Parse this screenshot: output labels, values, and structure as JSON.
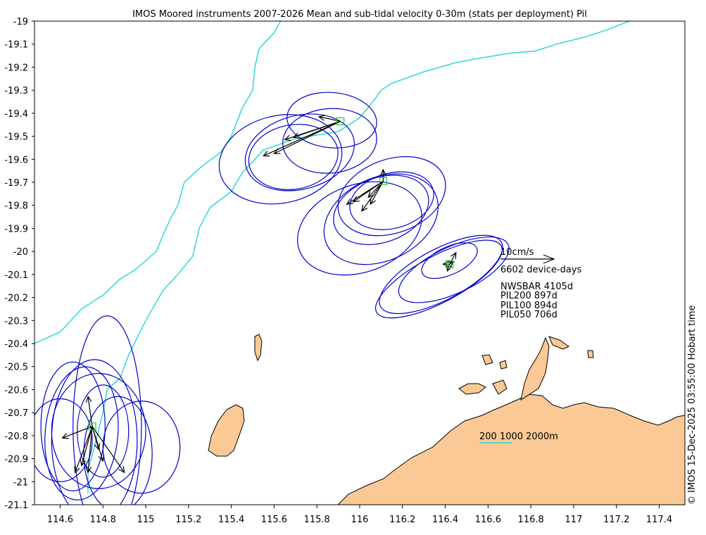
{
  "title": "IMOS Moored instruments 2007-2026 Mean and sub-tidal velocity 0-30m (stats per deployment) Pil",
  "copyright": "© IMOS 15-Dec-2025 03:55:00 Hobart time",
  "colors": {
    "ellipse": "#0000cc",
    "arrow": "#000000",
    "land": "#fbc995",
    "isobath": "#30d8d8",
    "site": "#22cc22"
  },
  "axes": {
    "x_ticks": [
      "114.6",
      "114.8",
      "115",
      "115.2",
      "115.4",
      "115.6",
      "115.8",
      "116",
      "116.2",
      "116.4",
      "116.6",
      "116.8",
      "117",
      "117.2",
      "117.4"
    ],
    "y_ticks": [
      "-19",
      "-19.1",
      "-19.2",
      "-19.3",
      "-19.4",
      "-19.5",
      "-19.6",
      "-19.7",
      "-19.8",
      "-19.9",
      "-20",
      "-20.1",
      "-20.2",
      "-20.3",
      "-20.4",
      "-20.5",
      "-20.6",
      "-20.7",
      "-20.8",
      "-20.9",
      "-21",
      "-21.1"
    ],
    "xlim": [
      114.48,
      117.52
    ],
    "ylim": [
      -21.1,
      -19.0
    ]
  },
  "legend": {
    "scale_label": "10cm/s",
    "device_days": "6602 device-days",
    "sites": [
      "NWSBAR 4105d",
      "PIL200 897d",
      "PIL100 894d",
      "PIL050 706d"
    ]
  },
  "isobath_label": "200 1000 2000m",
  "map_data": {
    "sites": [
      {
        "name": "PIL200",
        "lon": 115.91,
        "lat": -19.435
      },
      {
        "name": "PIL100",
        "lon": 116.11,
        "lat": -19.695
      },
      {
        "name": "PIL050",
        "lon": 116.42,
        "lat": -20.055
      },
      {
        "name": "NWSBAR",
        "lon": 114.75,
        "lat": -20.76
      }
    ],
    "ellipses": [
      {
        "lon": 115.87,
        "lat": -19.43,
        "a": 0.21,
        "b": 0.12,
        "ang": 5
      },
      {
        "lon": 115.72,
        "lat": -19.57,
        "a": 0.26,
        "b": 0.16,
        "ang": -15
      },
      {
        "lon": 115.69,
        "lat": -19.59,
        "a": 0.21,
        "b": 0.14,
        "ang": -10
      },
      {
        "lon": 115.63,
        "lat": -19.6,
        "a": 0.29,
        "b": 0.19,
        "ang": -12
      },
      {
        "lon": 115.86,
        "lat": -19.52,
        "a": 0.22,
        "b": 0.14,
        "ang": -5
      },
      {
        "lon": 116.15,
        "lat": -19.76,
        "a": 0.26,
        "b": 0.16,
        "ang": -20
      },
      {
        "lon": 116.0,
        "lat": -19.9,
        "a": 0.3,
        "b": 0.19,
        "ang": -20
      },
      {
        "lon": 116.1,
        "lat": -19.86,
        "a": 0.28,
        "b": 0.18,
        "ang": -25
      },
      {
        "lon": 116.1,
        "lat": -19.82,
        "a": 0.23,
        "b": 0.14,
        "ang": -20
      },
      {
        "lon": 116.15,
        "lat": -19.78,
        "a": 0.2,
        "b": 0.12,
        "ang": -15
      },
      {
        "lon": 116.37,
        "lat": -20.12,
        "a": 0.33,
        "b": 0.1,
        "ang": -28
      },
      {
        "lon": 116.38,
        "lat": -20.1,
        "a": 0.32,
        "b": 0.11,
        "ang": -28
      },
      {
        "lon": 116.44,
        "lat": -20.08,
        "a": 0.28,
        "b": 0.1,
        "ang": -25
      },
      {
        "lon": 116.42,
        "lat": -20.04,
        "a": 0.14,
        "b": 0.06,
        "ang": -25
      },
      {
        "lon": 114.66,
        "lat": -20.76,
        "a": 0.15,
        "b": 0.28,
        "ang": 0
      },
      {
        "lon": 114.7,
        "lat": -20.79,
        "a": 0.17,
        "b": 0.29,
        "ang": 5
      },
      {
        "lon": 114.78,
        "lat": -20.78,
        "a": 0.22,
        "b": 0.25,
        "ang": 0
      },
      {
        "lon": 114.82,
        "lat": -20.76,
        "a": 0.16,
        "b": 0.48,
        "ang": 0
      },
      {
        "lon": 114.76,
        "lat": -20.82,
        "a": 0.2,
        "b": 0.35,
        "ang": 0
      },
      {
        "lon": 114.87,
        "lat": -20.88,
        "a": 0.16,
        "b": 0.25,
        "ang": 0
      },
      {
        "lon": 114.98,
        "lat": -20.85,
        "a": 0.18,
        "b": 0.2,
        "ang": 0
      },
      {
        "lon": 114.8,
        "lat": -20.78,
        "a": 0.12,
        "b": 0.2,
        "ang": 0
      },
      {
        "lon": 114.6,
        "lat": -20.82,
        "a": 0.15,
        "b": 0.18,
        "ang": 0
      }
    ],
    "arrows": [
      {
        "lon": 115.91,
        "lat": -19.435,
        "dlon": -0.1,
        "dlat": 0.02
      },
      {
        "lon": 115.91,
        "lat": -19.435,
        "dlon": -0.22,
        "dlat": -0.07
      },
      {
        "lon": 115.91,
        "lat": -19.435,
        "dlon": -0.31,
        "dlat": -0.14
      },
      {
        "lon": 115.91,
        "lat": -19.435,
        "dlon": -0.26,
        "dlat": -0.08
      },
      {
        "lon": 115.91,
        "lat": -19.435,
        "dlon": -0.36,
        "dlat": -0.15
      },
      {
        "lon": 116.11,
        "lat": -19.695,
        "dlon": -0.17,
        "dlat": -0.1
      },
      {
        "lon": 116.11,
        "lat": -19.695,
        "dlon": -0.1,
        "dlat": -0.13
      },
      {
        "lon": 116.11,
        "lat": -19.695,
        "dlon": -0.07,
        "dlat": -0.07
      },
      {
        "lon": 116.11,
        "lat": -19.695,
        "dlon": -0.06,
        "dlat": -0.1
      },
      {
        "lon": 116.11,
        "lat": -19.695,
        "dlon": 0.0,
        "dlat": 0.05
      },
      {
        "lon": 116.11,
        "lat": -19.695,
        "dlon": -0.14,
        "dlat": -0.09
      },
      {
        "lon": 116.42,
        "lat": -20.055,
        "dlon": 0.03,
        "dlat": 0.05
      },
      {
        "lon": 116.42,
        "lat": -20.055,
        "dlon": -0.03,
        "dlat": 0.0
      },
      {
        "lon": 116.42,
        "lat": -20.055,
        "dlon": -0.01,
        "dlat": -0.03
      },
      {
        "lon": 116.42,
        "lat": -20.055,
        "dlon": 0.02,
        "dlat": 0.01
      },
      {
        "lon": 114.75,
        "lat": -20.76,
        "dlon": -0.02,
        "dlat": 0.13
      },
      {
        "lon": 114.75,
        "lat": -20.76,
        "dlon": -0.14,
        "dlat": -0.05
      },
      {
        "lon": 114.75,
        "lat": -20.76,
        "dlon": -0.05,
        "dlat": -0.17
      },
      {
        "lon": 114.75,
        "lat": -20.76,
        "dlon": -0.02,
        "dlat": -0.2
      },
      {
        "lon": 114.75,
        "lat": -20.76,
        "dlon": 0.05,
        "dlat": -0.15
      },
      {
        "lon": 114.75,
        "lat": -20.76,
        "dlon": 0.15,
        "dlat": -0.2
      },
      {
        "lon": 114.75,
        "lat": -20.76,
        "dlon": -0.08,
        "dlat": -0.2
      },
      {
        "lon": 114.75,
        "lat": -20.76,
        "dlon": 0.03,
        "dlat": -0.1
      }
    ],
    "isobaths": [
      [
        [
          114.48,
          -20.4
        ],
        [
          114.6,
          -20.35
        ],
        [
          114.7,
          -20.25
        ],
        [
          114.8,
          -20.19
        ],
        [
          114.88,
          -20.12
        ],
        [
          114.95,
          -20.08
        ],
        [
          115.0,
          -20.04
        ],
        [
          115.05,
          -20.0
        ],
        [
          115.08,
          -19.93
        ],
        [
          115.12,
          -19.85
        ],
        [
          115.15,
          -19.8
        ],
        [
          115.18,
          -19.7
        ],
        [
          115.25,
          -19.64
        ],
        [
          115.35,
          -19.57
        ],
        [
          115.4,
          -19.5
        ],
        [
          115.45,
          -19.38
        ],
        [
          115.5,
          -19.3
        ],
        [
          115.51,
          -19.2
        ],
        [
          115.53,
          -19.12
        ],
        [
          115.6,
          -19.05
        ],
        [
          115.63,
          -19.0
        ]
      ],
      [
        [
          114.73,
          -21.05
        ],
        [
          114.73,
          -20.95
        ],
        [
          114.76,
          -20.85
        ],
        [
          114.8,
          -20.7
        ],
        [
          114.82,
          -20.6
        ],
        [
          114.88,
          -20.55
        ],
        [
          114.92,
          -20.45
        ],
        [
          115.0,
          -20.3
        ],
        [
          115.08,
          -20.17
        ],
        [
          115.15,
          -20.1
        ],
        [
          115.22,
          -20.02
        ],
        [
          115.25,
          -19.9
        ],
        [
          115.3,
          -19.81
        ],
        [
          115.4,
          -19.74
        ],
        [
          115.45,
          -19.66
        ],
        [
          115.55,
          -19.56
        ],
        [
          115.7,
          -19.51
        ],
        [
          115.9,
          -19.48
        ],
        [
          116.0,
          -19.42
        ],
        [
          116.07,
          -19.34
        ],
        [
          116.1,
          -19.3
        ],
        [
          116.15,
          -19.27
        ],
        [
          116.3,
          -19.22
        ],
        [
          116.45,
          -19.18
        ],
        [
          116.57,
          -19.16
        ],
        [
          116.7,
          -19.14
        ],
        [
          116.82,
          -19.13
        ],
        [
          116.92,
          -19.1
        ],
        [
          117.05,
          -19.07
        ],
        [
          117.15,
          -19.04
        ],
        [
          117.26,
          -19.0
        ]
      ]
    ]
  }
}
